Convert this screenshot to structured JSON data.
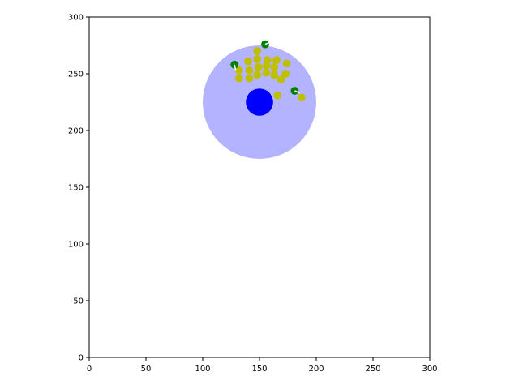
{
  "axes": {
    "xlim": [
      0,
      300
    ],
    "ylim": [
      0,
      300
    ],
    "x_ticks": [
      0,
      50,
      100,
      150,
      200,
      250,
      300
    ],
    "y_ticks": [
      0,
      50,
      100,
      150,
      200,
      250,
      300
    ],
    "x_tick_labels": [
      "0",
      "50",
      "100",
      "150",
      "200",
      "250",
      "300"
    ],
    "y_tick_labels": [
      "0",
      "50",
      "100",
      "150",
      "200",
      "250",
      "300"
    ],
    "grid": false
  },
  "scene": {
    "zone": {
      "x": 150,
      "y": 225,
      "r": 50,
      "color": "#b3b3ff"
    },
    "agent": {
      "x": 150,
      "y": 225,
      "r": 12,
      "color": "#0000ff"
    },
    "food_color": "#bfbf00",
    "food_radius": 3.5,
    "food": [
      [
        148,
        270
      ],
      [
        140,
        261
      ],
      [
        148,
        263
      ],
      [
        157,
        262
      ],
      [
        165,
        262
      ],
      [
        174,
        259
      ],
      [
        132,
        253
      ],
      [
        141,
        253
      ],
      [
        149,
        256
      ],
      [
        156,
        257
      ],
      [
        163,
        256
      ],
      [
        173,
        250
      ],
      [
        132,
        246
      ],
      [
        141,
        246
      ],
      [
        148,
        249
      ],
      [
        156,
        251
      ],
      [
        163,
        249
      ],
      [
        169,
        245
      ],
      [
        166,
        231
      ],
      [
        187,
        229
      ]
    ],
    "enemy_color": "#008000",
    "enemy_radius": 3.5,
    "enemies": [
      {
        "x": 155,
        "y": 276,
        "dx": 1,
        "dy": 0.4
      },
      {
        "x": 128,
        "y": 258,
        "dx": 0.2,
        "dy": -1
      },
      {
        "x": 181,
        "y": 235,
        "dx": 1,
        "dy": -0.4
      }
    ]
  }
}
